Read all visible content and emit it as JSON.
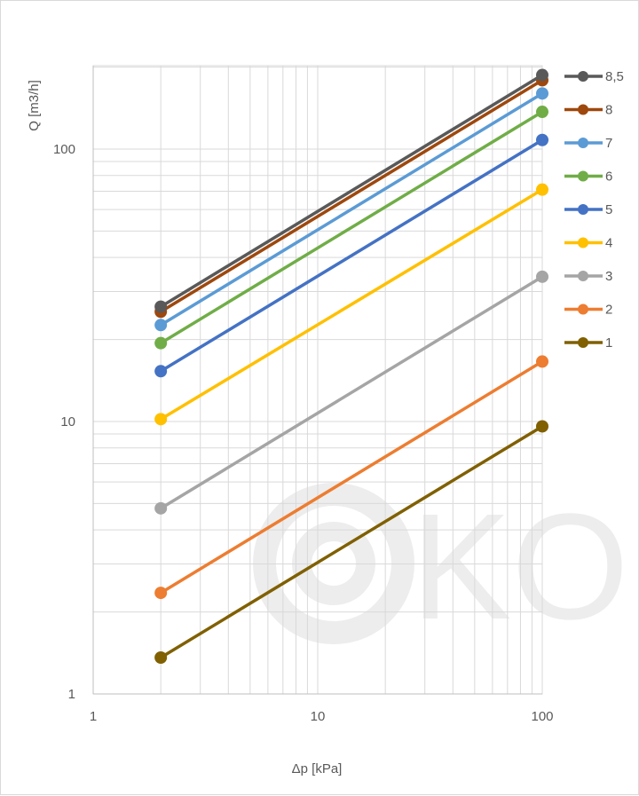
{
  "chart_data": {
    "type": "line",
    "xscale": "log",
    "yscale": "log",
    "xlim": [
      1,
      100
    ],
    "ylim": [
      1,
      200
    ],
    "x_ticks": [
      "1",
      "10",
      "100"
    ],
    "y_ticks": [
      "1",
      "10",
      "100"
    ],
    "xlabel": "Δp  [kPa]",
    "ylabel": "Q  [m3/h]",
    "grid": true,
    "legend_position": "right",
    "x": [
      2,
      100
    ],
    "series": [
      {
        "name": "8,5",
        "color": "#595959",
        "values": [
          26.4,
          187
        ]
      },
      {
        "name": "8",
        "color": "#9e480e",
        "values": [
          25.3,
          179
        ]
      },
      {
        "name": "7",
        "color": "#5b9bd5",
        "values": [
          22.6,
          160
        ]
      },
      {
        "name": "6",
        "color": "#70ad47",
        "values": [
          19.4,
          137
        ]
      },
      {
        "name": "5",
        "color": "#4472c4",
        "values": [
          15.3,
          108
        ]
      },
      {
        "name": "4",
        "color": "#ffc000",
        "values": [
          10.2,
          71
        ]
      },
      {
        "name": "3",
        "color": "#a5a5a5",
        "values": [
          4.8,
          34
        ]
      },
      {
        "name": "2",
        "color": "#ed7d31",
        "values": [
          2.35,
          16.6
        ]
      },
      {
        "name": "1",
        "color": "#806000",
        "values": [
          1.36,
          9.6
        ]
      }
    ]
  },
  "watermark": {
    "text": "KOM",
    "color": "#ededed"
  }
}
